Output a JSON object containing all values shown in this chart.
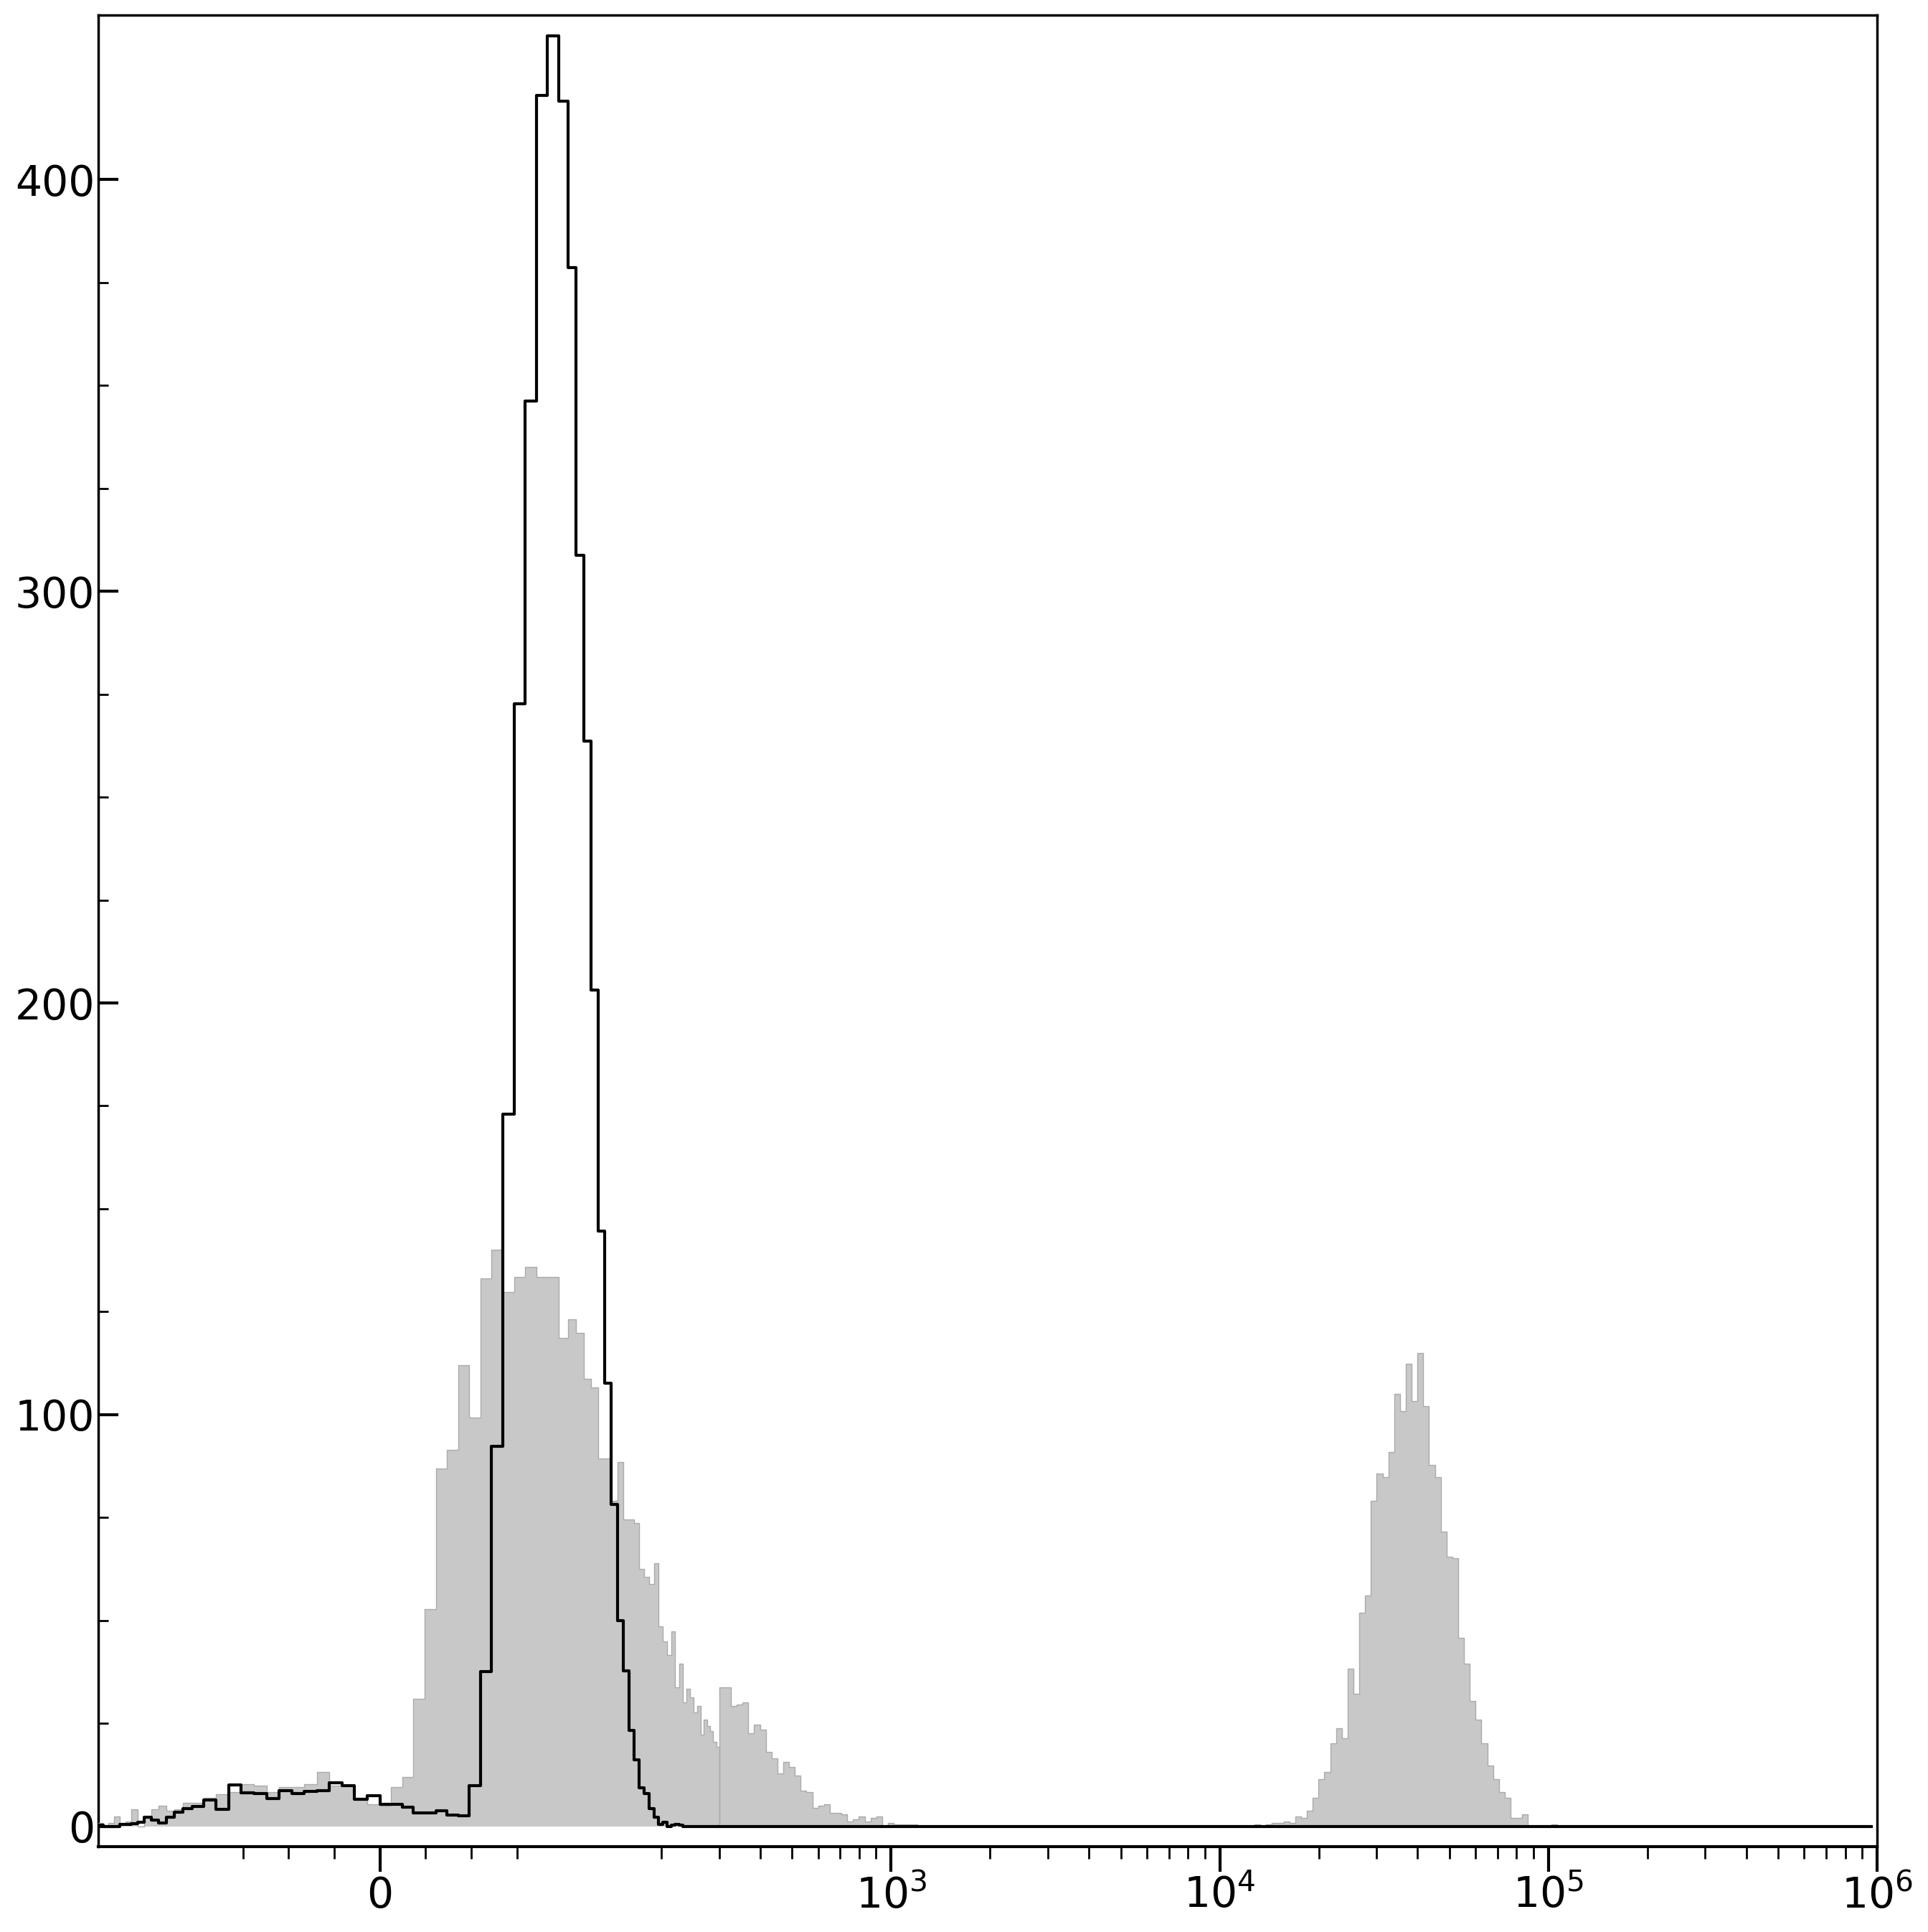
{
  "background_color": "#ffffff",
  "ylim": [
    -5,
    440
  ],
  "yticks": [
    0,
    100,
    200,
    300,
    400
  ],
  "xlim_left": -200,
  "xlim_right": 1000000,
  "x_linthresh": 100,
  "xlabel_ticks": [
    0,
    1000,
    10000,
    100000,
    1000000
  ],
  "xlabel_labels": [
    "0",
    "$10^3$",
    "$10^4$",
    "$10^5$",
    "$10^6$"
  ],
  "gray_color": "#c8c8c8",
  "gray_edge_color": "#aaaaaa",
  "black_color": "#000000",
  "linewidth_black": 3.0,
  "linewidth_gray": 1.0,
  "tick_fontsize": 42,
  "spine_linewidth": 2.5
}
